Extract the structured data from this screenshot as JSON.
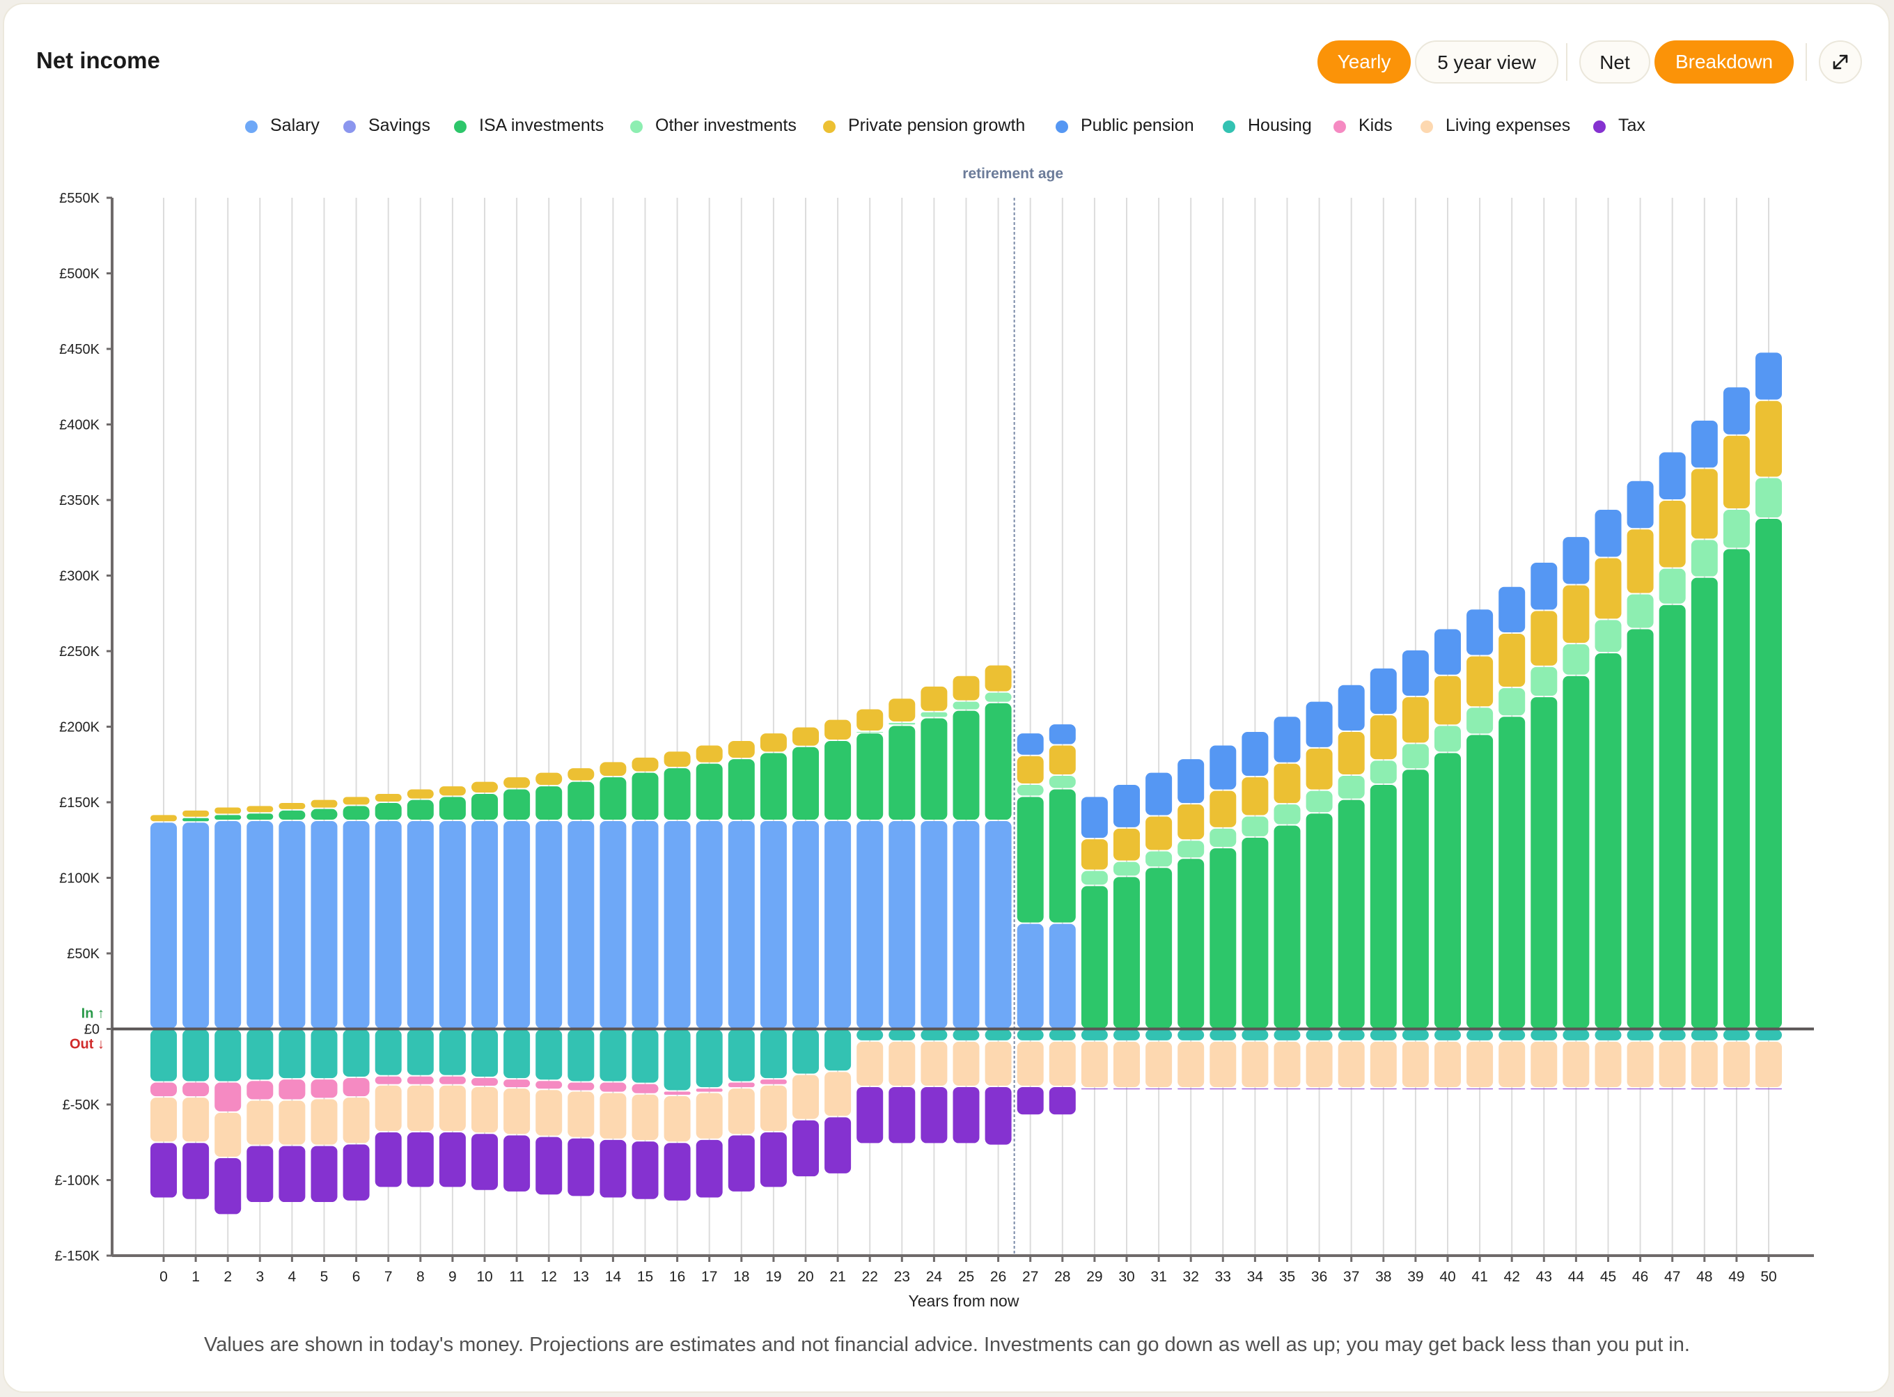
{
  "header": {
    "title": "Net income",
    "toggles": [
      {
        "label": "Yearly",
        "active": true
      },
      {
        "label": "5 year view",
        "active": false
      },
      {
        "label": "Net",
        "active": false
      },
      {
        "label": "Breakdown",
        "active": true
      }
    ],
    "expand_icon": "expand-arrows-icon"
  },
  "footer": {
    "disclaimer": "Values are shown in today's money. Projections are estimates and not financial advice. Investments can go down as well as up; you may get back less than you put in."
  },
  "chart_data": {
    "type": "bar",
    "stacked": true,
    "xlabel": "Years from now",
    "ylabel": "",
    "ylim": [
      -150000,
      550000
    ],
    "yticks": [
      -150000,
      -100000,
      -50000,
      0,
      50000,
      100000,
      150000,
      200000,
      250000,
      300000,
      350000,
      400000,
      450000,
      500000,
      550000
    ],
    "ytick_labels": [
      "£-150K",
      "£-100K",
      "£-50K",
      "£0",
      "£50K",
      "£100K",
      "£150K",
      "£200K",
      "£250K",
      "£300K",
      "£350K",
      "£400K",
      "£450K",
      "£500K",
      "£550K"
    ],
    "in_label": "In ↑",
    "out_label": "Out ↓",
    "annotation": {
      "x": 26.5,
      "label": "retirement age"
    },
    "grid": "vertical",
    "legend_position": "top-center",
    "categories": [
      0,
      1,
      2,
      3,
      4,
      5,
      6,
      7,
      8,
      9,
      10,
      11,
      12,
      13,
      14,
      15,
      16,
      17,
      18,
      19,
      20,
      21,
      22,
      23,
      24,
      25,
      26,
      27,
      28,
      29,
      30,
      31,
      32,
      33,
      34,
      35,
      36,
      37,
      38,
      39,
      40,
      41,
      42,
      43,
      44,
      45,
      46,
      47,
      48,
      49,
      50
    ],
    "series": [
      {
        "name": "Salary",
        "color": "#6ea8f7",
        "values": [
          137000,
          137000,
          138000,
          138000,
          138000,
          138000,
          138000,
          138000,
          138000,
          138000,
          138000,
          138000,
          138000,
          138000,
          138000,
          138000,
          138000,
          138000,
          138000,
          138000,
          138000,
          138000,
          138000,
          138000,
          138000,
          138000,
          138000,
          70000,
          70000,
          0,
          0,
          0,
          0,
          0,
          0,
          0,
          0,
          0,
          0,
          0,
          0,
          0,
          0,
          0,
          0,
          0,
          0,
          0,
          0,
          0,
          0
        ]
      },
      {
        "name": "Savings",
        "color": "#8b96ee",
        "values": [
          0,
          0,
          0,
          0,
          0,
          0,
          0,
          0,
          0,
          0,
          0,
          0,
          0,
          0,
          0,
          0,
          0,
          0,
          0,
          0,
          0,
          0,
          0,
          0,
          0,
          0,
          0,
          0,
          0,
          0,
          0,
          0,
          0,
          0,
          0,
          0,
          0,
          0,
          0,
          0,
          0,
          0,
          0,
          0,
          0,
          0,
          0,
          0,
          0,
          0,
          0
        ]
      },
      {
        "name": "ISA investments",
        "color": "#2dc66a",
        "values": [
          0,
          3000,
          4000,
          5000,
          7000,
          8000,
          10000,
          12000,
          14000,
          16000,
          18000,
          21000,
          23000,
          26000,
          29000,
          32000,
          35000,
          38000,
          41000,
          45000,
          49000,
          53000,
          58000,
          63000,
          68000,
          73000,
          78000,
          84000,
          89000,
          95000,
          101000,
          107000,
          113000,
          120000,
          127000,
          135000,
          143000,
          152000,
          162000,
          172000,
          183000,
          195000,
          207000,
          220000,
          234000,
          249000,
          265000,
          281000,
          299000,
          318000,
          338000
        ]
      },
      {
        "name": "Other investments",
        "color": "#8deeb1",
        "values": [
          0,
          0,
          0,
          0,
          0,
          0,
          0,
          0,
          0,
          0,
          0,
          0,
          0,
          0,
          0,
          0,
          0,
          0,
          0,
          0,
          0,
          0,
          1000,
          2000,
          4000,
          6000,
          7000,
          8000,
          9000,
          10000,
          10000,
          11000,
          12000,
          13000,
          14000,
          14000,
          15000,
          16000,
          16000,
          17000,
          18000,
          18000,
          19000,
          20000,
          21000,
          22000,
          23000,
          24000,
          25000,
          26000,
          27000
        ]
      },
      {
        "name": "Private pension growth",
        "color": "#ecc033",
        "values": [
          5000,
          5000,
          5000,
          5000,
          5000,
          6000,
          6000,
          6000,
          7000,
          7000,
          8000,
          8000,
          9000,
          9000,
          10000,
          10000,
          11000,
          12000,
          12000,
          13000,
          13000,
          14000,
          15000,
          16000,
          17000,
          17000,
          18000,
          19000,
          20000,
          21000,
          22000,
          23000,
          24000,
          25000,
          26000,
          27000,
          28000,
          29000,
          30000,
          31000,
          33000,
          34000,
          36000,
          37000,
          39000,
          41000,
          43000,
          45000,
          47000,
          49000,
          51000
        ]
      },
      {
        "name": "Public pension",
        "color": "#5597f3",
        "values": [
          0,
          0,
          0,
          0,
          0,
          0,
          0,
          0,
          0,
          0,
          0,
          0,
          0,
          0,
          0,
          0,
          0,
          0,
          0,
          0,
          0,
          0,
          0,
          0,
          0,
          0,
          0,
          15000,
          14000,
          28000,
          29000,
          29000,
          30000,
          30000,
          30000,
          31000,
          31000,
          31000,
          31000,
          31000,
          31000,
          31000,
          31000,
          32000,
          32000,
          32000,
          32000,
          32000,
          32000,
          32000,
          32000
        ]
      },
      {
        "name": "Housing",
        "color": "#33c2b2",
        "values": [
          -35000,
          -35000,
          -35000,
          -34000,
          -33000,
          -33000,
          -32000,
          -31000,
          -31000,
          -31000,
          -32000,
          -33000,
          -34000,
          -35000,
          -35000,
          -36000,
          -41000,
          -39000,
          -35000,
          -33000,
          -30000,
          -28000,
          -8000,
          -8000,
          -8000,
          -8000,
          -8000,
          -8000,
          -8000,
          -8000,
          -8000,
          -8000,
          -8000,
          -8000,
          -8000,
          -8000,
          -8000,
          -8000,
          -8000,
          -8000,
          -8000,
          -8000,
          -8000,
          -8000,
          -8000,
          -8000,
          -8000,
          -8000,
          -8000,
          -8000,
          -8000
        ]
      },
      {
        "name": "Kids",
        "color": "#f58ac2",
        "values": [
          -10000,
          -10000,
          -20000,
          -13000,
          -14000,
          -13000,
          -13000,
          -6000,
          -6000,
          -6000,
          -6000,
          -6000,
          -6000,
          -6000,
          -7000,
          -7000,
          -3000,
          -3000,
          -4000,
          -4000,
          0,
          0,
          0,
          0,
          0,
          0,
          0,
          0,
          0,
          0,
          0,
          0,
          0,
          0,
          0,
          0,
          0,
          0,
          0,
          0,
          0,
          0,
          0,
          0,
          0,
          0,
          0,
          0,
          0,
          0,
          0
        ]
      },
      {
        "name": "Living expenses",
        "color": "#fdd8b0",
        "values": [
          -30000,
          -30000,
          -30000,
          -30000,
          -30000,
          -31000,
          -31000,
          -31000,
          -31000,
          -31000,
          -31000,
          -31000,
          -31000,
          -31000,
          -31000,
          -31000,
          -31000,
          -31000,
          -31000,
          -31000,
          -30000,
          -30000,
          -30000,
          -30000,
          -30000,
          -30000,
          -30000,
          -30000,
          -30000,
          -31000,
          -31000,
          -31000,
          -31000,
          -31000,
          -31000,
          -31000,
          -31000,
          -31000,
          -31000,
          -31000,
          -31000,
          -31000,
          -31000,
          -31000,
          -31000,
          -31000,
          -31000,
          -31000,
          -31000,
          -31000,
          -31000
        ]
      },
      {
        "name": "Tax",
        "color": "#8532d0",
        "values": [
          -37000,
          -38000,
          -38000,
          -38000,
          -38000,
          -38000,
          -38000,
          -37000,
          -37000,
          -37000,
          -38000,
          -38000,
          -39000,
          -39000,
          -39000,
          -39000,
          -39000,
          -39000,
          -38000,
          -37000,
          -38000,
          -38000,
          -38000,
          -38000,
          -38000,
          -38000,
          -39000,
          -19000,
          -19000,
          -1000,
          -1000,
          -1000,
          -1000,
          -1000,
          -1000,
          -1000,
          -1000,
          -1000,
          -1000,
          -1000,
          -1000,
          -1000,
          -1000,
          -1000,
          -1000,
          -1000,
          -1000,
          -1000,
          -1000,
          -1000,
          -1000
        ]
      }
    ]
  }
}
